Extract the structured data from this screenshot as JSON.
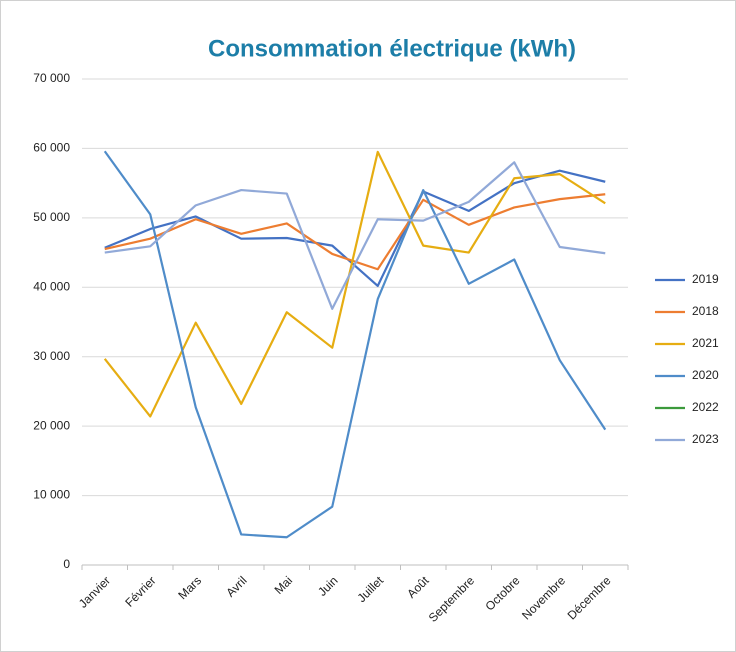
{
  "chart_data": {
    "type": "line",
    "title": "Consommation électrique (kWh)",
    "categories": [
      "Janvier",
      "Février",
      "Mars",
      "Avril",
      "Mai",
      "Juin",
      "Juillet",
      "Août",
      "Septembre",
      "Octobre",
      "Novembre",
      "Décembre"
    ],
    "series": [
      {
        "name": "2019",
        "color": "#4472c4",
        "values": [
          45700,
          48400,
          50200,
          47000,
          47100,
          46000,
          40200,
          53800,
          51000,
          55000,
          56800,
          55200
        ]
      },
      {
        "name": "2018",
        "color": "#ed7d31",
        "values": [
          45500,
          47000,
          49800,
          47700,
          49200,
          44800,
          42600,
          52600,
          49000,
          51500,
          52700,
          53400
        ]
      },
      {
        "name": "2021",
        "color": "#e6ad12",
        "values": [
          29700,
          21400,
          34900,
          23200,
          36400,
          31300,
          59500,
          46000,
          45000,
          55700,
          56300,
          52100
        ]
      },
      {
        "name": "2020",
        "color": "#4f8cc9",
        "values": [
          59600,
          50500,
          22700,
          4400,
          4000,
          8400,
          38300,
          54000,
          40500,
          44000,
          29500,
          19500
        ]
      },
      {
        "name": "2022",
        "color": "#3c9a3c",
        "values": [
          null,
          null,
          null,
          null,
          null,
          null,
          null,
          null,
          null,
          null,
          null,
          null
        ]
      },
      {
        "name": "2023",
        "color": "#91a9d8",
        "values": [
          45000,
          45900,
          51800,
          54000,
          53500,
          36900,
          49800,
          49600,
          52300,
          58000,
          45800,
          44900
        ]
      }
    ],
    "ylim": [
      0,
      70000
    ],
    "yticks": [
      {
        "value": 0,
        "label": "0"
      },
      {
        "value": 10000,
        "label": "10 000"
      },
      {
        "value": 20000,
        "label": "20 000"
      },
      {
        "value": 30000,
        "label": "30 000"
      },
      {
        "value": 40000,
        "label": "40 000"
      },
      {
        "value": 50000,
        "label": "50 000"
      },
      {
        "value": 60000,
        "label": "60 000"
      },
      {
        "value": 70000,
        "label": "70 000"
      }
    ],
    "grid": true,
    "legend": "right"
  }
}
